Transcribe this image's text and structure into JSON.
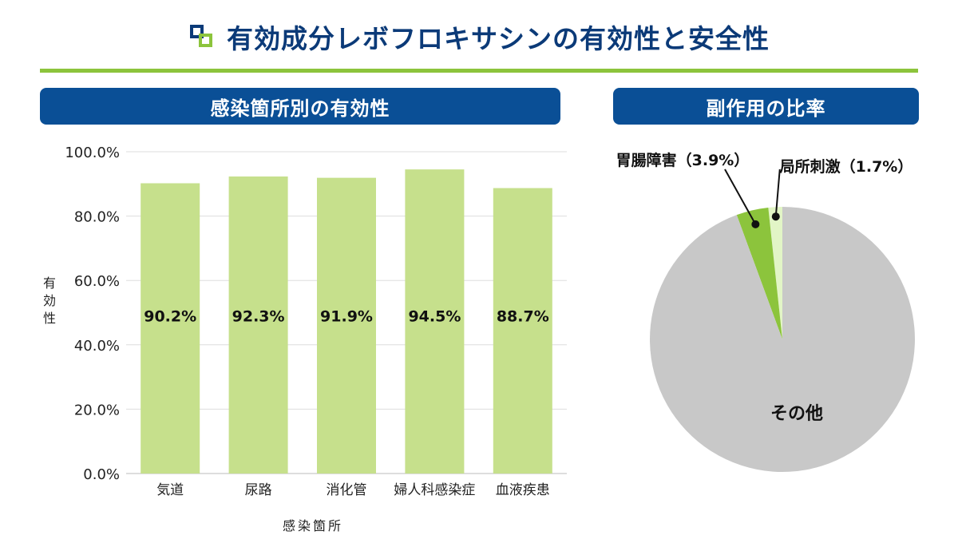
{
  "header": {
    "title": "有効成分レボフロキサシンの有効性と安全性",
    "accent_color": "#8cc43c",
    "title_color": "#0b3a78",
    "icon": "nested-squares-icon"
  },
  "bar_section": {
    "title": "感染箇所別の有効性",
    "header_color": "#0a4f96"
  },
  "pie_section": {
    "title": "副作用の比率",
    "header_color": "#0a4f96"
  },
  "chart_data": [
    {
      "type": "bar",
      "categories": [
        "気道",
        "尿路",
        "消化管",
        "婦人科感染症",
        "血液疾患"
      ],
      "values": [
        90.2,
        92.3,
        91.9,
        94.5,
        88.7
      ],
      "data_labels": [
        "90.2%",
        "92.3%",
        "91.9%",
        "94.5%",
        "88.7%"
      ],
      "ylabel": "有効性",
      "xlabel": "感染箇所",
      "ylim": [
        0,
        100
      ],
      "yticks": [
        "0.0%",
        "20.0%",
        "40.0%",
        "60.0%",
        "80.0%",
        "100.0%"
      ],
      "grid": true,
      "bar_color": "#c6e08c"
    },
    {
      "type": "pie",
      "labels": [
        "局所刺激",
        "胃腸障害",
        "その他"
      ],
      "values": [
        1.7,
        3.9,
        94.4
      ],
      "data_labels": [
        "局所刺激（1.7%）",
        "胃腸障害（3.9%）",
        "その他"
      ],
      "colors": [
        "#e2f5c6",
        "#8cc43c",
        "#c8c8c8"
      ]
    }
  ]
}
